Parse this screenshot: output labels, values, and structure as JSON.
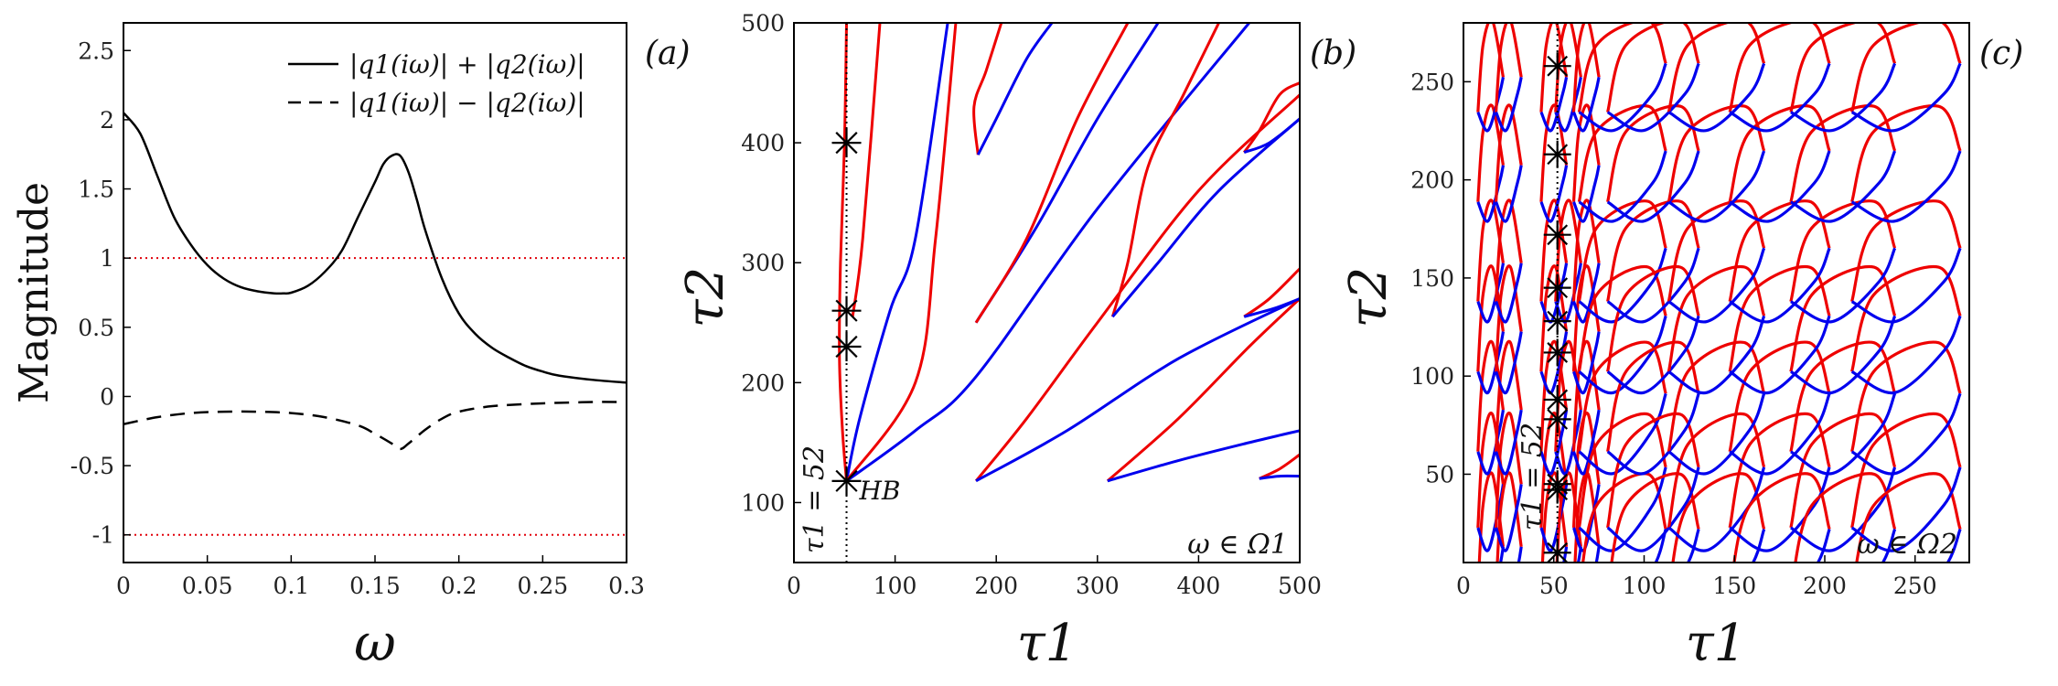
{
  "chart_data": [
    {
      "type": "line",
      "panel_label": "(a)",
      "ylabel": "Magnitude",
      "xlabel": "ω",
      "xlim": [
        0,
        0.3
      ],
      "ylim": [
        -1.2,
        2.7
      ],
      "xticks": [
        "0",
        "0.05",
        "0.1",
        "0.15",
        "0.2",
        "0.25",
        "0.3"
      ],
      "yticks": [
        "-1",
        "-0.5",
        "0",
        "0.5",
        "1",
        "1.5",
        "2",
        "2.5"
      ],
      "series": [
        {
          "name": "|q1(iω)| + |q2(iω)|",
          "style": "solid",
          "color": "#000000",
          "x": [
            0,
            0.01,
            0.02,
            0.03,
            0.04,
            0.05,
            0.06,
            0.07,
            0.08,
            0.09,
            0.095,
            0.1,
            0.11,
            0.12,
            0.13,
            0.14,
            0.15,
            0.155,
            0.16,
            0.165,
            0.17,
            0.175,
            0.18,
            0.19,
            0.2,
            0.21,
            0.22,
            0.23,
            0.24,
            0.25,
            0.26,
            0.28,
            0.3
          ],
          "y": [
            2.05,
            1.9,
            1.6,
            1.3,
            1.1,
            0.95,
            0.85,
            0.79,
            0.76,
            0.745,
            0.745,
            0.75,
            0.8,
            0.9,
            1.05,
            1.3,
            1.55,
            1.68,
            1.74,
            1.74,
            1.62,
            1.42,
            1.2,
            0.85,
            0.6,
            0.45,
            0.35,
            0.28,
            0.22,
            0.18,
            0.15,
            0.12,
            0.1
          ]
        },
        {
          "name": "|q1(iω)| − |q2(iω)|",
          "style": "dashed",
          "color": "#000000",
          "x": [
            0,
            0.02,
            0.04,
            0.06,
            0.08,
            0.1,
            0.12,
            0.14,
            0.15,
            0.16,
            0.165,
            0.17,
            0.18,
            0.19,
            0.2,
            0.22,
            0.25,
            0.28,
            0.3
          ],
          "y": [
            -0.2,
            -0.15,
            -0.12,
            -0.11,
            -0.11,
            -0.12,
            -0.15,
            -0.21,
            -0.27,
            -0.34,
            -0.38,
            -0.34,
            -0.24,
            -0.16,
            -0.11,
            -0.07,
            -0.05,
            -0.04,
            -0.04
          ]
        }
      ],
      "reference_lines": [
        {
          "y": 1,
          "style": "dotted",
          "color": "#e0000a"
        },
        {
          "y": -1,
          "style": "dotted",
          "color": "#e0000a"
        }
      ]
    },
    {
      "type": "line",
      "panel_label": "(b)",
      "xlabel": "τ1",
      "ylabel": "τ2",
      "xlim": [
        0,
        500
      ],
      "ylim": [
        50,
        500
      ],
      "xticks": [
        "0",
        "100",
        "200",
        "300",
        "400",
        "500"
      ],
      "yticks": [
        "100",
        "200",
        "300",
        "400",
        "500"
      ],
      "annotation_region": "ω ∈ Ω1",
      "annotation_line": "τ1 = 52",
      "annotation_point": "HB",
      "vertical_line_x": 52,
      "colors": {
        "red": "#ee0000",
        "blue": "#0000ee"
      },
      "curves": [
        {
          "color": "red",
          "points": [
            [
              52,
              118
            ],
            [
              48,
              160
            ],
            [
              45,
              220
            ],
            [
              46,
              300
            ],
            [
              50,
              400
            ],
            [
              52,
              500
            ]
          ]
        },
        {
          "color": "blue",
          "points": [
            [
              52,
              118
            ],
            [
              65,
              170
            ],
            [
              95,
              260
            ],
            [
              120,
              320
            ],
            [
              152,
              500
            ]
          ]
        },
        {
          "color": "red",
          "points": [
            [
              58,
              255
            ],
            [
              68,
              320
            ],
            [
              85,
              500
            ]
          ]
        },
        {
          "color": "blue",
          "points": [
            [
              52,
              118
            ],
            [
              120,
              160
            ],
            [
              180,
              205
            ],
            [
              300,
              345
            ],
            [
              450,
              500
            ]
          ]
        },
        {
          "color": "red",
          "points": [
            [
              52,
              118
            ],
            [
              120,
              200
            ],
            [
              140,
              320
            ],
            [
              160,
              500
            ]
          ]
        },
        {
          "color": "red",
          "points": [
            [
              182,
              390
            ],
            [
              178,
              430
            ],
            [
              190,
              460
            ],
            [
              205,
              500
            ]
          ]
        },
        {
          "color": "blue",
          "points": [
            [
              182,
              390
            ],
            [
              200,
              420
            ],
            [
              230,
              470
            ],
            [
              255,
              500
            ]
          ]
        },
        {
          "color": "blue",
          "points": [
            [
              180,
              250
            ],
            [
              240,
              330
            ],
            [
              300,
              420
            ],
            [
              360,
              500
            ]
          ]
        },
        {
          "color": "red",
          "points": [
            [
              180,
              250
            ],
            [
              230,
              320
            ],
            [
              280,
              420
            ],
            [
              330,
              500
            ]
          ]
        },
        {
          "color": "red",
          "points": [
            [
              180,
              118
            ],
            [
              230,
              170
            ],
            [
              300,
              250
            ],
            [
              400,
              360
            ],
            [
              500,
              440
            ]
          ]
        },
        {
          "color": "blue",
          "points": [
            [
              180,
              118
            ],
            [
              270,
              160
            ],
            [
              380,
              220
            ],
            [
              500,
              270
            ]
          ]
        },
        {
          "color": "red",
          "points": [
            [
              315,
              255
            ],
            [
              330,
              300
            ],
            [
              350,
              380
            ],
            [
              385,
              440
            ],
            [
              420,
              500
            ]
          ]
        },
        {
          "color": "blue",
          "points": [
            [
              315,
              255
            ],
            [
              360,
              300
            ],
            [
              420,
              360
            ],
            [
              500,
              420
            ]
          ]
        },
        {
          "color": "red",
          "points": [
            [
              310,
              118
            ],
            [
              380,
              170
            ],
            [
              450,
              230
            ],
            [
              500,
              270
            ]
          ]
        },
        {
          "color": "blue",
          "points": [
            [
              310,
              118
            ],
            [
              380,
              135
            ],
            [
              450,
              150
            ],
            [
              500,
              160
            ]
          ]
        },
        {
          "color": "red",
          "points": [
            [
              445,
              392
            ],
            [
              460,
              410
            ],
            [
              480,
              440
            ],
            [
              500,
              450
            ]
          ]
        },
        {
          "color": "blue",
          "points": [
            [
              445,
              392
            ],
            [
              470,
              400
            ],
            [
              500,
              420
            ]
          ]
        },
        {
          "color": "red",
          "points": [
            [
              445,
              255
            ],
            [
              470,
              270
            ],
            [
              500,
              295
            ]
          ]
        },
        {
          "color": "blue",
          "points": [
            [
              445,
              255
            ],
            [
              475,
              262
            ],
            [
              500,
              270
            ]
          ]
        },
        {
          "color": "red",
          "points": [
            [
              460,
              120
            ],
            [
              480,
              128
            ],
            [
              500,
              140
            ]
          ]
        },
        {
          "color": "blue",
          "points": [
            [
              460,
              120
            ],
            [
              480,
              122
            ],
            [
              500,
              122
            ]
          ]
        }
      ],
      "stars": [
        [
          52,
          118
        ],
        [
          52,
          230
        ],
        [
          52,
          260
        ],
        [
          52,
          400
        ]
      ]
    },
    {
      "type": "line",
      "panel_label": "(c)",
      "xlabel": "τ1",
      "ylabel": "τ2",
      "xlim": [
        0,
        280
      ],
      "ylim": [
        5,
        280
      ],
      "xticks": [
        "0",
        "50",
        "100",
        "150",
        "200",
        "250"
      ],
      "yticks": [
        "50",
        "100",
        "150",
        "200",
        "250"
      ],
      "annotation_region": "ω ∈ Ω2",
      "annotation_line": "τ1 = 52",
      "vertical_line_x": 52,
      "colors": {
        "red": "#ee0000",
        "blue": "#0000ee"
      },
      "loop_columns": [
        15,
        25,
        50,
        58,
        68,
        88,
        105,
        140,
        175,
        210,
        245
      ],
      "loop_rows": [
        10,
        42,
        80,
        120,
        155,
        205,
        250
      ],
      "stars": [
        [
          52,
          10
        ],
        [
          52,
          42
        ],
        [
          52,
          45
        ],
        [
          52,
          78
        ],
        [
          52,
          88
        ],
        [
          52,
          112
        ],
        [
          52,
          128
        ],
        [
          52,
          145
        ],
        [
          52,
          172
        ],
        [
          52,
          213
        ],
        [
          52,
          258
        ]
      ]
    }
  ]
}
